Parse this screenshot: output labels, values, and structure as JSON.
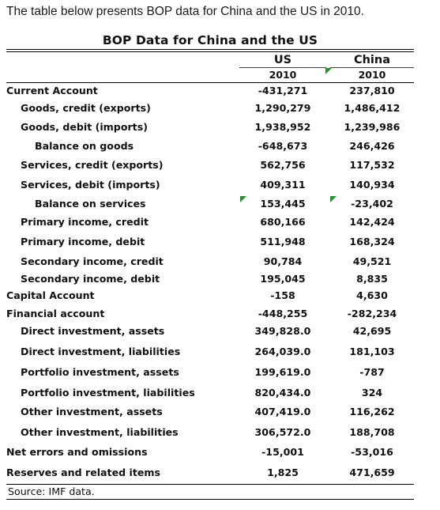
{
  "intro_text": "The table below presents BOP data for China and the US in 2010.",
  "table": {
    "title": "BOP Data for China and the US",
    "columns": [
      "US",
      "China"
    ],
    "years": [
      "2010",
      "2010"
    ],
    "rows": [
      {
        "label": "Current Account",
        "us": "-431,271",
        "china": "237,810"
      },
      {
        "label": "Goods, credit (exports)",
        "us": "1,290,279",
        "china": "1,486,412"
      },
      {
        "label": "Goods, debit (imports)",
        "us": "1,938,952",
        "china": "1,239,986"
      },
      {
        "label": "Balance on goods",
        "us": "-648,673",
        "china": "246,426"
      },
      {
        "label": "Services, credit (exports)",
        "us": "562,756",
        "china": "117,532"
      },
      {
        "label": "Services, debit (imports)",
        "us": "409,311",
        "china": "140,934"
      },
      {
        "label": "Balance on services",
        "us": "153,445",
        "china": "-23,402"
      },
      {
        "label": "Primary income, credit",
        "us": "680,166",
        "china": "142,424"
      },
      {
        "label": "Primary income, debit",
        "us": "511,948",
        "china": "168,324"
      },
      {
        "label": "Secondary income, credit",
        "us": "90,784",
        "china": "49,521"
      },
      {
        "label": "Secondary income, debit",
        "us": "195,045",
        "china": "8,835"
      },
      {
        "label": "Capital Account",
        "us": "-158",
        "china": "4,630"
      },
      {
        "label": "Financial account",
        "us": "-448,255",
        "china": "-282,234"
      },
      {
        "label": "Direct investment, assets",
        "us": "349,828.0",
        "china": "42,695"
      },
      {
        "label": "Direct investment, liabilities",
        "us": "264,039.0",
        "china": "181,103"
      },
      {
        "label": "Portfolio investment, assets",
        "us": "199,619.0",
        "china": "-787"
      },
      {
        "label": "Portfolio investment, liabilities",
        "us": "820,434.0",
        "china": "324"
      },
      {
        "label": "Other investment, assets",
        "us": "407,419.0",
        "china": "116,262"
      },
      {
        "label": "Other investment, liabilities",
        "us": "306,572.0",
        "china": "188,708"
      },
      {
        "label": "Net errors and omissions",
        "us": "-15,001",
        "china": "-53,016"
      },
      {
        "label": "Reserves and related items",
        "us": "1,825",
        "china": "471,659"
      }
    ],
    "source": "Source: IMF data."
  },
  "colors": {
    "cell_flag": "#2e8b3a"
  }
}
